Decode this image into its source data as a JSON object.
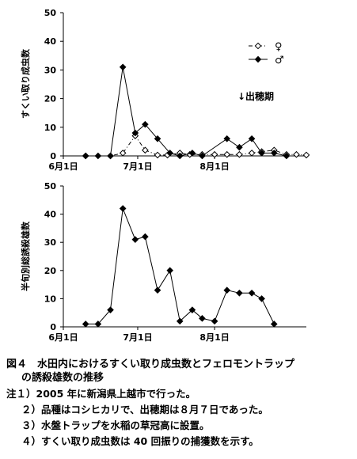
{
  "chart_data": [
    {
      "type": "line",
      "ylabel": "すくい取り成虫数",
      "ylim": [
        0,
        50
      ],
      "yticks": [
        "0",
        "10",
        "20",
        "30",
        "40",
        "50"
      ],
      "xticks": [
        "6月1日",
        "7月1日",
        "8月1日"
      ],
      "xtick_days": [
        0,
        30,
        61
      ],
      "xlim": [
        0,
        98
      ],
      "annotation": "↓出穂期",
      "legend_position": "top-right",
      "series": [
        {
          "name": "♀",
          "style": "dash-dot",
          "marker": "open-diamond",
          "x": [
            9,
            19,
            24,
            29,
            33,
            38,
            42,
            47,
            51,
            56,
            61,
            66,
            71,
            76,
            80,
            85,
            90,
            94,
            98
          ],
          "y": [
            0,
            0,
            1,
            7,
            2,
            0.3,
            0.3,
            1,
            0.5,
            0.5,
            0.5,
            0.5,
            0.5,
            1,
            1.5,
            2,
            0.5,
            0.5,
            0.3
          ]
        },
        {
          "name": "♂",
          "style": "solid",
          "marker": "filled-diamond",
          "x": [
            9,
            14,
            19,
            24,
            29,
            33,
            38,
            43,
            47,
            52,
            56,
            66,
            71,
            76,
            80,
            85,
            90
          ],
          "y": [
            0,
            0,
            0,
            31,
            8,
            11,
            6,
            1,
            0,
            1,
            0,
            6,
            3,
            6,
            1,
            1,
            0
          ]
        }
      ]
    },
    {
      "type": "line",
      "ylabel": "半旬別総誘殺雄数",
      "ylim": [
        0,
        50
      ],
      "yticks": [
        "0",
        "10",
        "20",
        "30",
        "40",
        "50"
      ],
      "xticks": [
        "6月1日",
        "7月1日",
        "8月1日"
      ],
      "xtick_days": [
        0,
        30,
        61
      ],
      "xlim": [
        0,
        98
      ],
      "series": [
        {
          "name": "",
          "style": "solid",
          "marker": "filled-diamond",
          "x": [
            9,
            14,
            19,
            24,
            29,
            33,
            38,
            43,
            47,
            52,
            56,
            61,
            66,
            71,
            76,
            80,
            85
          ],
          "y": [
            1,
            1,
            6,
            42,
            31,
            32,
            13,
            20,
            2,
            6,
            3,
            2,
            13,
            12,
            12,
            10,
            1
          ]
        }
      ]
    }
  ],
  "caption": {
    "title_line1": "図４　水田内におけるすくい取り成虫数とフェロモントラップ",
    "title_line2": "の誘殺雄数の推移",
    "notes": [
      "注１）2005 年に新潟県上越市で行った。",
      "２）品種はコシヒカリで、出穂期は８月７日であった。",
      "３）水盤トラップを水稲の草冠高に設置。",
      "４）すくい取り成虫数は 40 回振りの捕獲数を示す。"
    ]
  },
  "colors": {
    "line": "#000000",
    "background": "#ffffff"
  }
}
